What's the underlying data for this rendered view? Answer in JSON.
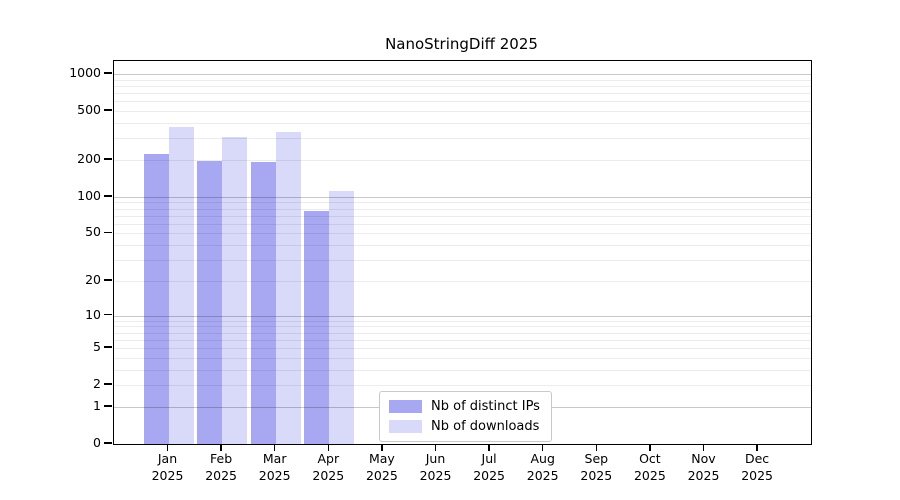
{
  "chart_data": {
    "type": "bar",
    "title": "NanoStringDiff 2025",
    "year": "2025",
    "months": [
      "Jan",
      "Feb",
      "Mar",
      "Apr",
      "May",
      "Jun",
      "Jul",
      "Aug",
      "Sep",
      "Oct",
      "Nov",
      "Dec"
    ],
    "categories": [
      "Jan 2025",
      "Feb 2025",
      "Mar 2025",
      "Apr 2025",
      "May 2025",
      "Jun 2025",
      "Jul 2025",
      "Aug 2025",
      "Sep 2025",
      "Oct 2025",
      "Nov 2025",
      "Dec 2025"
    ],
    "series": [
      {
        "name": "Nb of distinct IPs",
        "color": "#a7a7f2",
        "values": [
          225,
          197,
          193,
          76,
          null,
          null,
          null,
          null,
          null,
          null,
          null,
          null
        ]
      },
      {
        "name": "Nb of downloads",
        "color": "#d9d9f9",
        "values": [
          373,
          305,
          338,
          111,
          null,
          null,
          null,
          null,
          null,
          null,
          null,
          null
        ]
      }
    ],
    "y_scale": "log1p",
    "y_ticks": [
      0,
      1,
      2,
      5,
      10,
      20,
      50,
      100,
      200,
      500,
      1000
    ],
    "grid_major_ticks": [
      1,
      10,
      100,
      1000
    ],
    "ylim": [
      0,
      1275
    ],
    "xlabel": "",
    "ylabel": "",
    "grid": "horizontal",
    "legend_position": "inside-bottom-center",
    "colors": {
      "axis": "#000000",
      "text": "#000000",
      "grid_major": "rgba(0,0,0,0.215)",
      "grid_minor": "rgba(0,0,0,0.075)",
      "plot_background": "#ffffff"
    }
  }
}
